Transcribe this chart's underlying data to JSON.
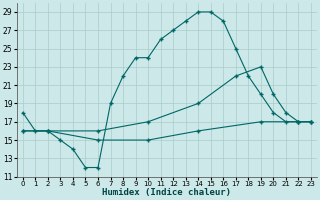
{
  "xlabel": "Humidex (Indice chaleur)",
  "bg_color": "#cce8e8",
  "grid_color": "#aacccc",
  "line_color": "#006666",
  "xlim": [
    -0.5,
    23.5
  ],
  "ylim": [
    11,
    30
  ],
  "xticks": [
    0,
    1,
    2,
    3,
    4,
    5,
    6,
    7,
    8,
    9,
    10,
    11,
    12,
    13,
    14,
    15,
    16,
    17,
    18,
    19,
    20,
    21,
    22,
    23
  ],
  "yticks": [
    11,
    13,
    15,
    17,
    19,
    21,
    23,
    25,
    27,
    29
  ],
  "series": [
    {
      "x": [
        0,
        1,
        2,
        3,
        4,
        5,
        6,
        7,
        8,
        9,
        10,
        11,
        12,
        13,
        14,
        15,
        16,
        17,
        18,
        19,
        20,
        21,
        22,
        23
      ],
      "y": [
        18,
        16,
        16,
        15,
        14,
        12,
        12,
        19,
        22,
        24,
        24,
        26,
        27,
        28,
        29,
        29,
        28,
        25,
        22,
        20,
        18,
        17,
        17,
        17
      ]
    },
    {
      "x": [
        0,
        2,
        6,
        10,
        14,
        17,
        19,
        20,
        21,
        22,
        23
      ],
      "y": [
        16,
        16,
        16,
        17,
        19,
        22,
        23,
        20,
        18,
        17,
        17
      ]
    },
    {
      "x": [
        0,
        2,
        6,
        10,
        14,
        19,
        22,
        23
      ],
      "y": [
        16,
        16,
        15,
        15,
        16,
        17,
        17,
        17
      ]
    }
  ]
}
